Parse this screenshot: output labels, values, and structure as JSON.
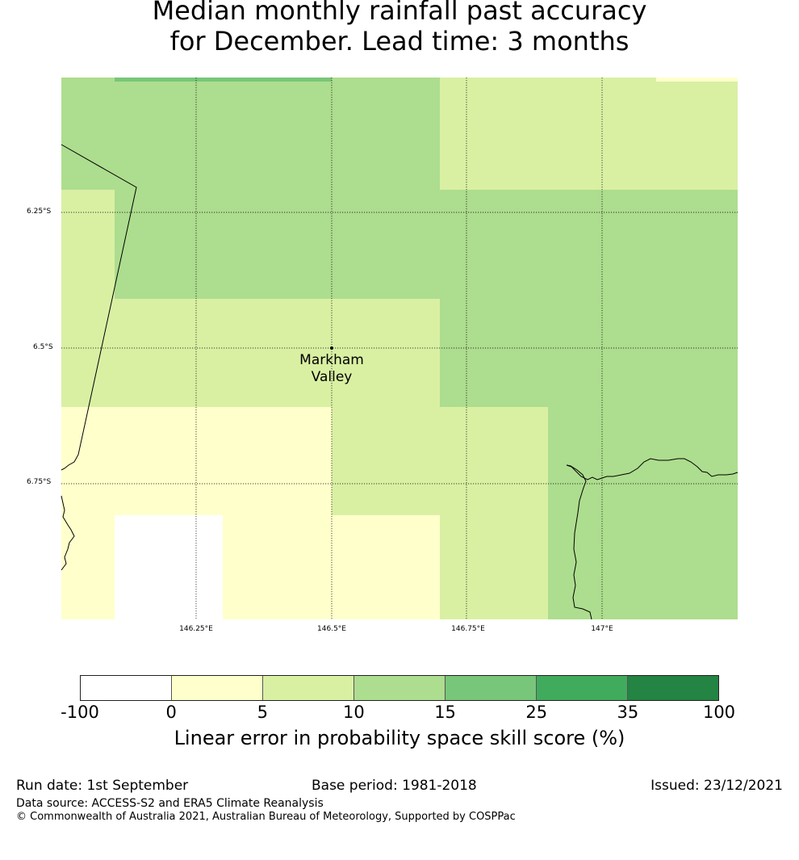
{
  "title": {
    "line1": "Median monthly rainfall past accuracy",
    "line2": "for December. Lead time: 3 months"
  },
  "map": {
    "lat_labels": [
      "6.25°S",
      "6.5°S",
      "6.75°S"
    ],
    "lon_labels": [
      "146.25°E",
      "146.5°E",
      "146.75°E",
      "147°E"
    ],
    "place": {
      "name_line1": "Markham",
      "name_line2": "Valley",
      "lon": 146.5,
      "lat": -6.5
    },
    "legend_colors": {
      "lt0": "#ffffff",
      "0-5": "#ffffcc",
      "5-10": "#d9f0a3",
      "10-15": "#addd8e",
      "15-25": "#78c679",
      "25-35": "#41ab5d",
      "35-100": "#238443"
    }
  },
  "colorbar": {
    "ticks": [
      "-100",
      "0",
      "5",
      "10",
      "15",
      "25",
      "35",
      "100"
    ],
    "label": "Linear error in probability space skill score (%)",
    "colors": [
      "#ffffff",
      "#ffffcc",
      "#d9f0a3",
      "#addd8e",
      "#78c679",
      "#41ab5d",
      "#238443"
    ]
  },
  "footer": {
    "run_date": "Run date: 1st September",
    "base_period": "Base period: 1981-2018",
    "issued": "Issued: 23/12/2021",
    "data_source": "Data source: ACCESS-S2 and ERA5 Climate Reanalysis",
    "copyright": "© Commonwealth of Australia 2021, Australian Bureau of Meteorology, Supported by COSPPac"
  }
}
